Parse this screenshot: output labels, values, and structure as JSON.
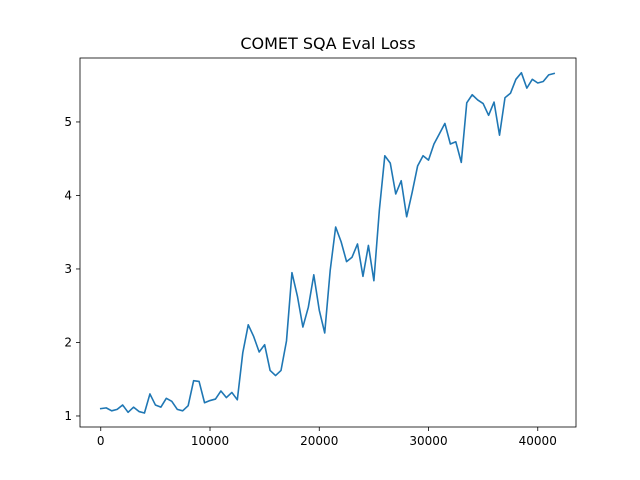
{
  "chart_data": {
    "type": "line",
    "title": "COMET SQA Eval Loss",
    "xlabel": "",
    "ylabel": "",
    "xlim": [
      -1900,
      43500
    ],
    "ylim": [
      0.85,
      5.87
    ],
    "x_ticks": [
      0,
      10000,
      20000,
      30000,
      40000
    ],
    "x_tick_labels": [
      "0",
      "10000",
      "20000",
      "30000",
      "40000"
    ],
    "y_ticks": [
      1,
      2,
      3,
      4,
      5
    ],
    "y_tick_labels": [
      "1",
      "2",
      "3",
      "4",
      "5"
    ],
    "grid": false,
    "legend": "none",
    "color": "#1f77b4",
    "series": [
      {
        "x": [
          0,
          500,
          1000,
          1500,
          2000,
          2500,
          3000,
          3500,
          4000,
          4500,
          5000,
          5500,
          6000,
          6500,
          7000,
          7500,
          8000,
          8500,
          9000,
          9500,
          10000,
          10500,
          11000,
          11500,
          12000,
          12500,
          13000,
          13500,
          14000,
          14500,
          15000,
          15500,
          16000,
          16500,
          17000,
          17500,
          18000,
          18500,
          19000,
          19500,
          20000,
          20500,
          21000,
          21500,
          22000,
          22500,
          23000,
          23500,
          24000,
          24500,
          25000,
          25500,
          26000,
          26500,
          27000,
          27500,
          28000,
          28500,
          29000,
          29500,
          30000,
          30500,
          31000,
          31500,
          32000,
          32500,
          33000,
          33500,
          34000,
          34500,
          35000,
          35500,
          36000,
          36500,
          37000,
          37500,
          38000,
          38500,
          39000,
          39500,
          40000,
          40500,
          41000,
          41500
        ],
        "values": [
          1.1,
          1.11,
          1.07,
          1.09,
          1.15,
          1.05,
          1.12,
          1.06,
          1.04,
          1.3,
          1.15,
          1.12,
          1.24,
          1.2,
          1.09,
          1.07,
          1.14,
          1.48,
          1.47,
          1.18,
          1.21,
          1.23,
          1.34,
          1.25,
          1.32,
          1.22,
          1.86,
          2.24,
          2.08,
          1.87,
          1.97,
          1.62,
          1.55,
          1.62,
          2.02,
          2.95,
          2.63,
          2.21,
          2.48,
          2.92,
          2.44,
          2.13,
          2.98,
          3.57,
          3.37,
          3.1,
          3.16,
          3.34,
          2.9,
          3.32,
          2.84,
          3.8,
          4.54,
          4.44,
          4.02,
          4.2,
          3.71,
          4.04,
          4.4,
          4.54,
          4.48,
          4.7,
          4.84,
          4.98,
          4.7,
          4.73,
          4.45,
          5.26,
          5.37,
          5.3,
          5.25,
          5.09,
          5.27,
          4.82,
          5.33,
          5.39,
          5.58,
          5.67,
          5.46,
          5.58,
          5.53,
          5.55,
          5.64,
          5.66
        ]
      }
    ]
  }
}
